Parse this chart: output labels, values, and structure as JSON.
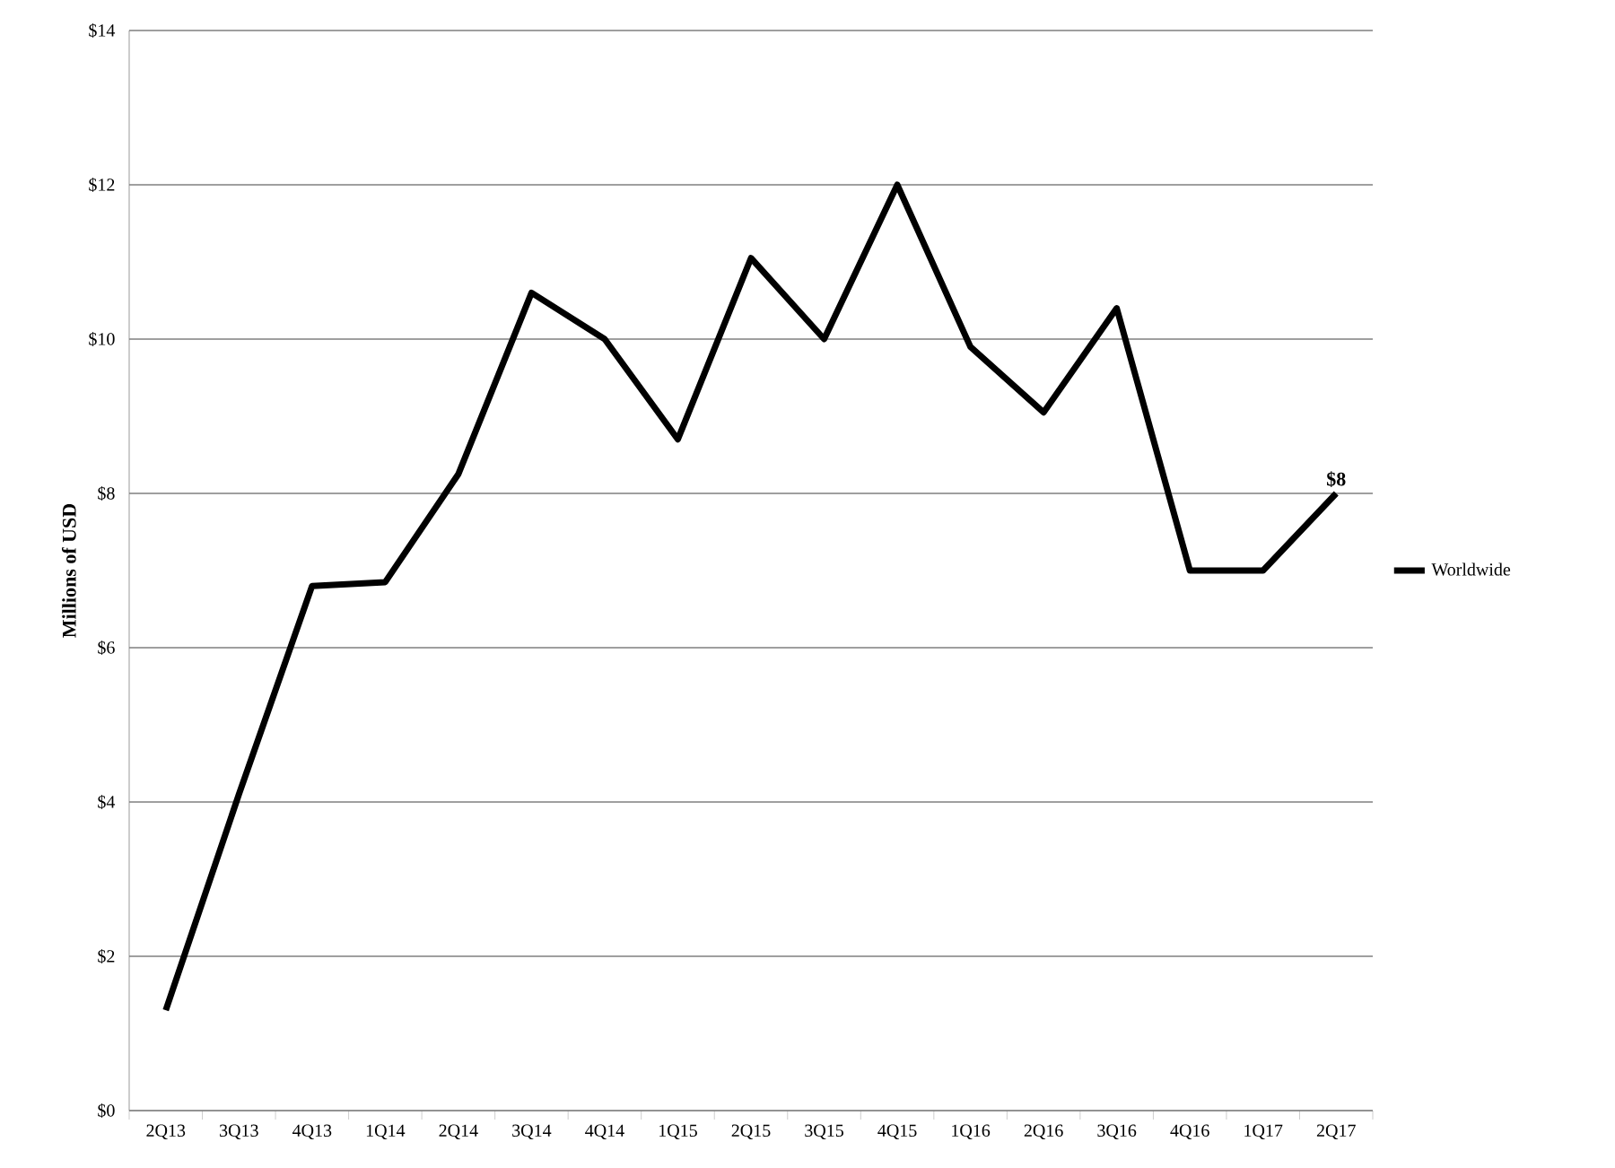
{
  "chart_data": {
    "type": "line",
    "ylabel": "Millions of USD",
    "categories": [
      "2Q13",
      "3Q13",
      "4Q13",
      "1Q14",
      "2Q14",
      "3Q14",
      "4Q14",
      "1Q15",
      "2Q15",
      "3Q15",
      "4Q15",
      "1Q16",
      "2Q16",
      "3Q16",
      "4Q16",
      "1Q17",
      "2Q17"
    ],
    "series": [
      {
        "name": "Worldwide",
        "color": "#000000",
        "values": [
          1.3,
          4.1,
          6.8,
          6.85,
          8.25,
          10.6,
          10.0,
          8.7,
          11.05,
          10.0,
          12.0,
          9.9,
          9.05,
          10.4,
          7.0,
          7.0,
          8.0
        ],
        "value_labels": [
          null,
          null,
          null,
          null,
          null,
          null,
          null,
          null,
          null,
          null,
          null,
          null,
          null,
          null,
          null,
          null,
          "$8"
        ]
      }
    ],
    "ylim": [
      0,
      14
    ],
    "yticks": [
      {
        "value": 0,
        "label": "$0"
      },
      {
        "value": 2,
        "label": "$2"
      },
      {
        "value": 4,
        "label": "$4"
      },
      {
        "value": 6,
        "label": "$6"
      },
      {
        "value": 8,
        "label": "$8"
      },
      {
        "value": 10,
        "label": "$10"
      },
      {
        "value": 12,
        "label": "$12"
      },
      {
        "value": 14,
        "label": "$14"
      }
    ],
    "grid": "y",
    "legend": "right",
    "marker": "none",
    "line_style": "solid"
  }
}
